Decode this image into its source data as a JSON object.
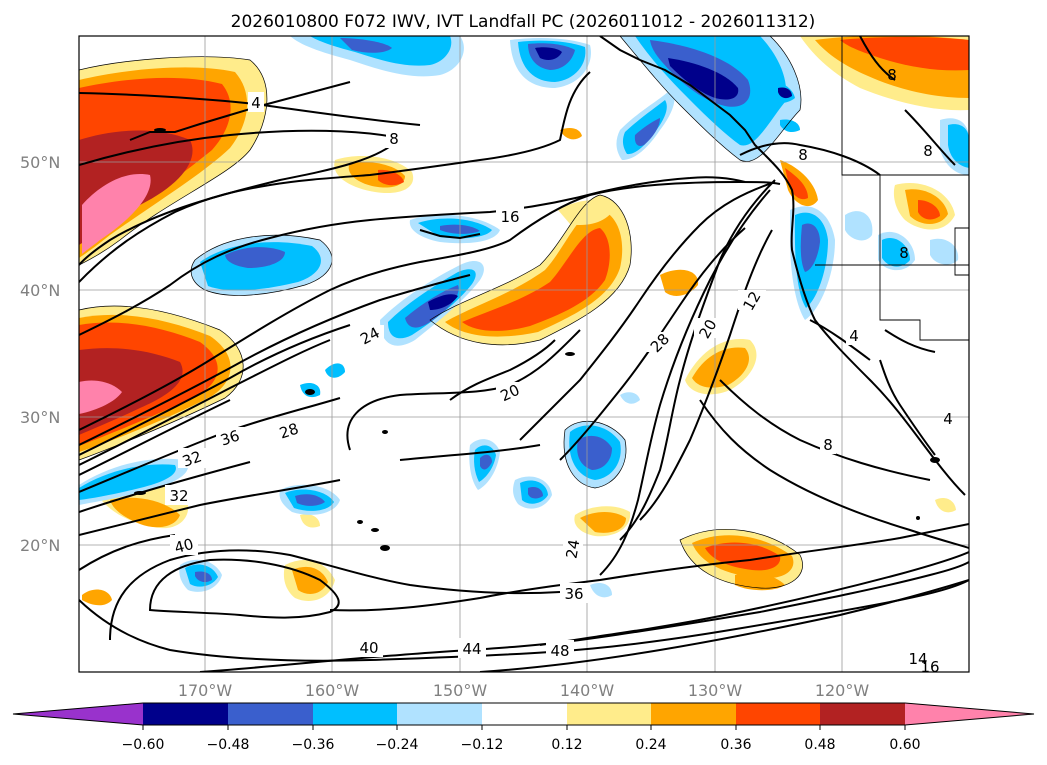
{
  "title": "2026010800 F072 IWV, IVT Landfall PC (2026011012 - 2026011312)",
  "lat_labels": [
    "50°N",
    "40°N",
    "30°N",
    "20°N"
  ],
  "lon_labels": [
    "170°W",
    "160°W",
    "150°W",
    "140°W",
    "130°W",
    "120°W"
  ],
  "colorbar": {
    "ticks": [
      "−0.60",
      "−0.48",
      "−0.36",
      "−0.24",
      "−0.12",
      "0.12",
      "0.24",
      "0.36",
      "0.48",
      "0.60"
    ],
    "colors": [
      "#9932cc",
      "#00008b",
      "#3a5fcd",
      "#00bfff",
      "#b0e2ff",
      "#ffffff",
      "#ffec8b",
      "#ffa500",
      "#ff4500",
      "#b22222",
      "#ff82ab"
    ]
  },
  "contour_labels": [
    "4",
    "8",
    "16",
    "24",
    "36",
    "28",
    "32",
    "32",
    "40",
    "20",
    "28",
    "20",
    "12",
    "8",
    "8",
    "4",
    "4",
    "24",
    "36",
    "40",
    "44",
    "48",
    "8",
    "8",
    "8",
    "14",
    "16"
  ]
}
